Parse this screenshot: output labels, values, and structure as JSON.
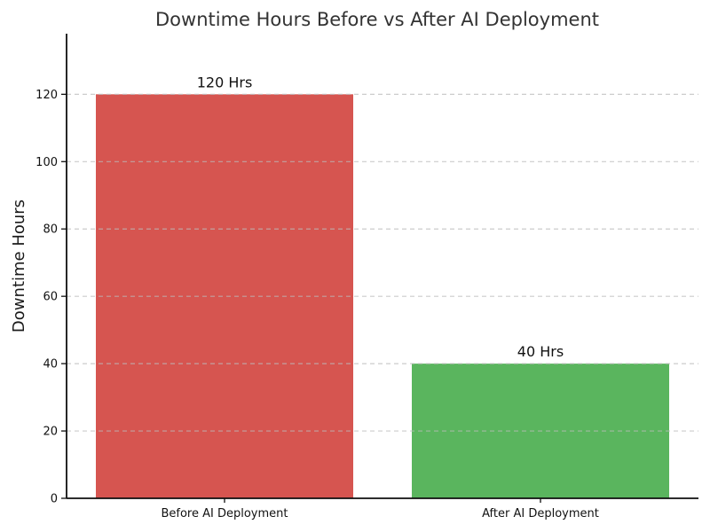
{
  "chart_data": {
    "type": "bar",
    "title": "Downtime Hours Before vs After AI Deployment",
    "xlabel": "",
    "ylabel": "Downtime Hours",
    "categories": [
      "Before AI Deployment",
      "After AI Deployment"
    ],
    "values": [
      120,
      40
    ],
    "bar_labels": [
      "120 Hrs",
      "40 Hrs"
    ],
    "bar_colors": [
      "#d65550",
      "#5ab55e"
    ],
    "yticks": [
      0,
      20,
      40,
      60,
      80,
      100,
      120
    ],
    "ylim": [
      0,
      138
    ],
    "grid": "horizontal-dashed",
    "grid_above_bars": true,
    "legend": "none",
    "background_color": "#ffffff",
    "title_color": "#333333"
  }
}
